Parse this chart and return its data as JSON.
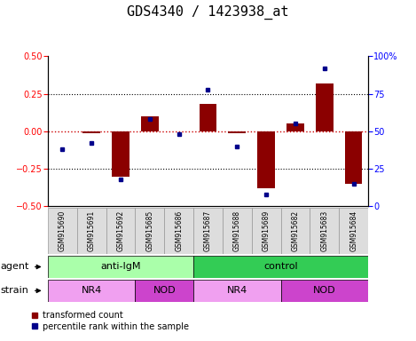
{
  "title": "GDS4340 / 1423938_at",
  "samples": [
    "GSM915690",
    "GSM915691",
    "GSM915692",
    "GSM915685",
    "GSM915686",
    "GSM915687",
    "GSM915688",
    "GSM915689",
    "GSM915682",
    "GSM915683",
    "GSM915684"
  ],
  "bar_values": [
    0.0,
    -0.01,
    -0.3,
    0.1,
    0.0,
    0.18,
    -0.01,
    -0.38,
    0.05,
    0.32,
    -0.35
  ],
  "percentile_values": [
    38,
    42,
    18,
    58,
    48,
    78,
    40,
    8,
    55,
    92,
    15
  ],
  "ylim_left": [
    -0.5,
    0.5
  ],
  "ylim_right": [
    0,
    100
  ],
  "yticks_left": [
    -0.5,
    -0.25,
    0.0,
    0.25,
    0.5
  ],
  "yticks_right": [
    0,
    25,
    50,
    75,
    100
  ],
  "bar_color": "#8B0000",
  "dot_color": "#00008B",
  "hline_color": "#CC0000",
  "grid_lines": [
    -0.25,
    0.25
  ],
  "agent_groups": [
    {
      "label": "anti-IgM",
      "start": 0,
      "end": 5,
      "color": "#AAFFAA"
    },
    {
      "label": "control",
      "start": 5,
      "end": 11,
      "color": "#33CC55"
    }
  ],
  "strain_groups": [
    {
      "label": "NR4",
      "start": 0,
      "end": 3,
      "color": "#F0A0F0"
    },
    {
      "label": "NOD",
      "start": 3,
      "end": 5,
      "color": "#CC44CC"
    },
    {
      "label": "NR4",
      "start": 5,
      "end": 8,
      "color": "#F0A0F0"
    },
    {
      "label": "NOD",
      "start": 8,
      "end": 11,
      "color": "#CC44CC"
    }
  ],
  "legend_bar_label": "transformed count",
  "legend_dot_label": "percentile rank within the sample",
  "agent_label": "agent",
  "strain_label": "strain",
  "title_fontsize": 11,
  "tick_fontsize": 7,
  "label_fontsize": 8,
  "sample_fontsize": 5.5,
  "legend_fontsize": 7
}
